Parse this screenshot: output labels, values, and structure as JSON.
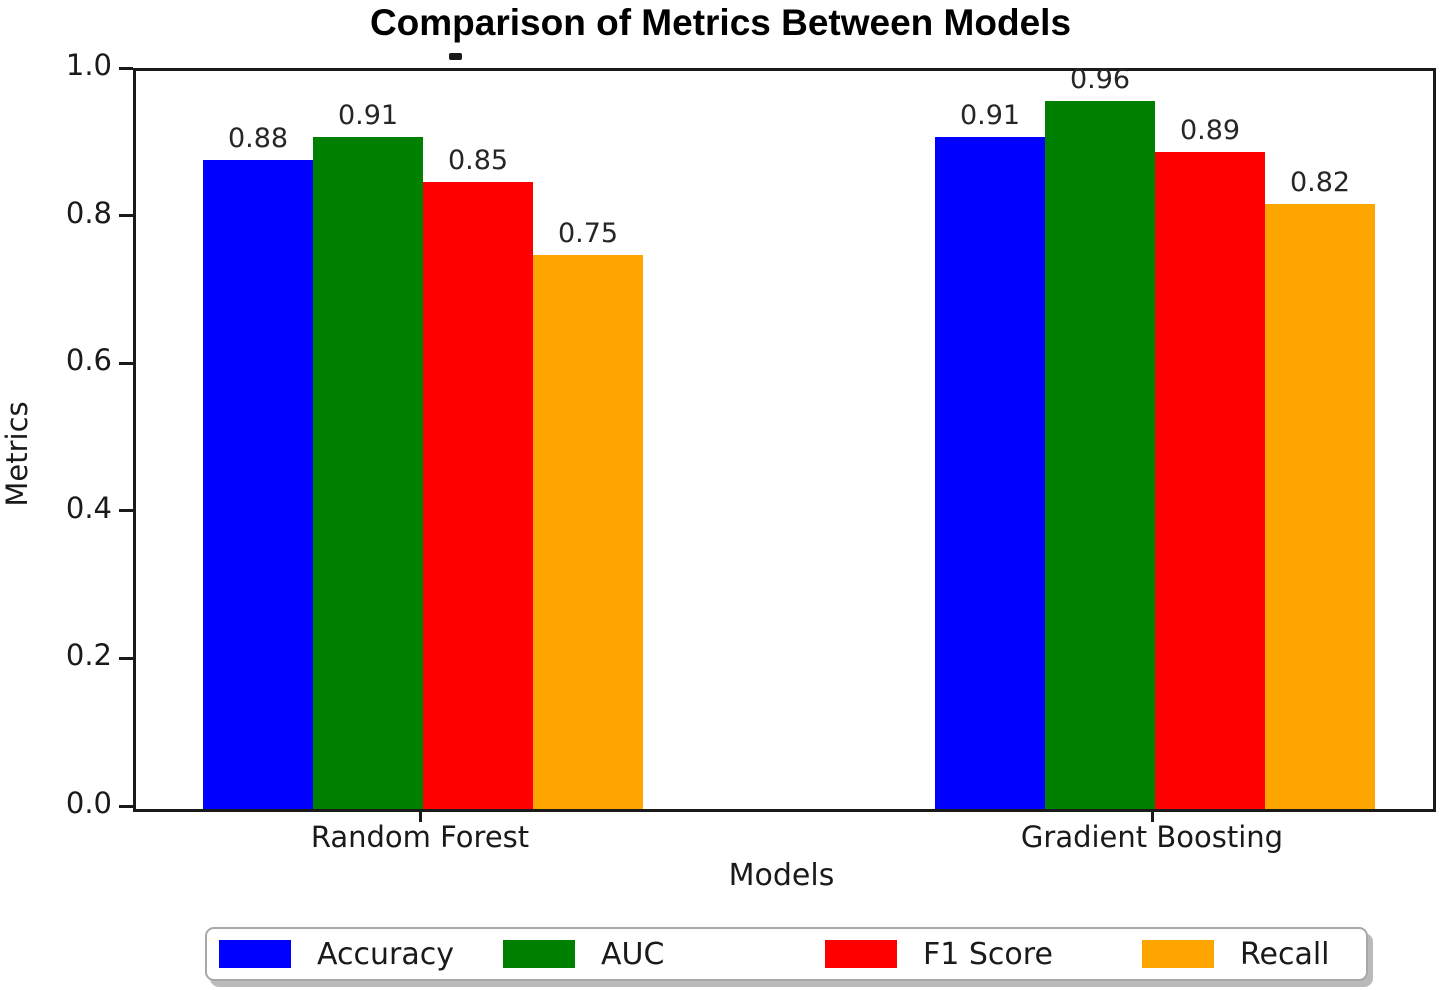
{
  "chart_data": {
    "type": "bar",
    "title": "Comparison of Metrics Between Models",
    "xlabel": "Models",
    "ylabel": "Metrics",
    "categories": [
      "Random Forest",
      "Gradient Boosting"
    ],
    "series": [
      {
        "name": "Accuracy",
        "color": "#0000ff",
        "values": [
          0.88,
          0.91
        ]
      },
      {
        "name": "AUC",
        "color": "#008000",
        "values": [
          0.91,
          0.96
        ]
      },
      {
        "name": "F1 Score",
        "color": "#ff0000",
        "values": [
          0.85,
          0.89
        ]
      },
      {
        "name": "Recall",
        "color": "#ffa500",
        "values": [
          0.75,
          0.82
        ]
      }
    ],
    "ylim": [
      0.0,
      1.0
    ],
    "yticks": [
      0.0,
      0.2,
      0.4,
      0.6,
      0.8,
      1.0
    ],
    "bar_value_labels": [
      "0.88",
      "0.91",
      "0.85",
      "0.75",
      "0.91",
      "0.96",
      "0.89",
      "0.82"
    ],
    "grid": false,
    "legend_position": "bottom",
    "spine_color": "#1a1a1a",
    "background_color": "#ffffff"
  }
}
